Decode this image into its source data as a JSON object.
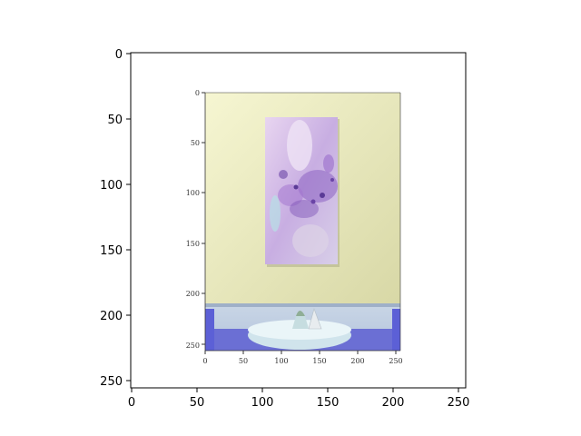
{
  "outer_axes": {
    "x_ticks": [
      "0",
      "50",
      "100",
      "150",
      "200",
      "250"
    ],
    "y_ticks": [
      "0",
      "50",
      "100",
      "150",
      "200",
      "250"
    ]
  },
  "inner_image_axes": {
    "x_ticks": [
      "0",
      "50",
      "100",
      "150",
      "200",
      "250"
    ],
    "y_ticks": [
      "0",
      "50",
      "100",
      "150",
      "200",
      "250"
    ]
  },
  "scene": {
    "wall_color": "#ecebc1",
    "floor_color": "#6b6fd4",
    "painting_colors": [
      "#cdb7e6",
      "#8d62c3",
      "#b6e0e6"
    ],
    "table_color": "#e6f3f7"
  }
}
